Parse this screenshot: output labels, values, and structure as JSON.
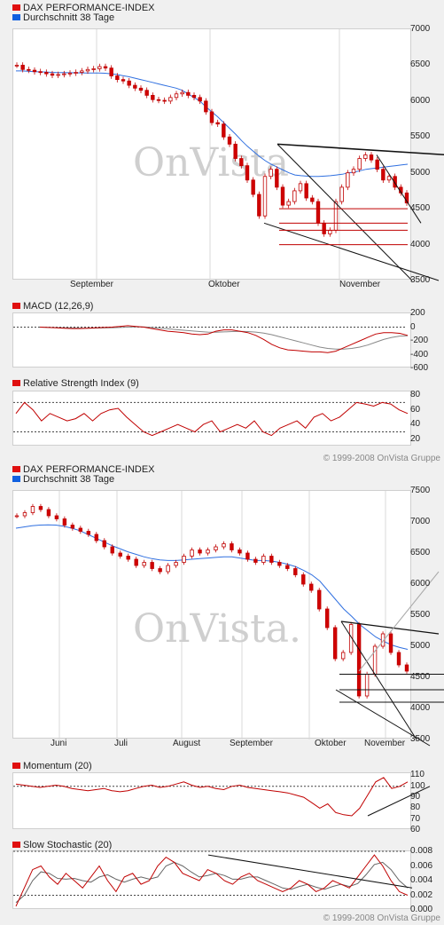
{
  "charts": [
    {
      "type": "line",
      "legend": [
        {
          "name": "DAX PERFORMANCE-INDEX",
          "color": "#e01010"
        },
        {
          "name": "Durchschnitt 38 Tage",
          "color": "#1060e0"
        }
      ],
      "watermark": "OnVista",
      "x_labels": [
        "September",
        "Oktober",
        "November"
      ],
      "y_labels": [
        "7000",
        "6500",
        "6000",
        "5500",
        "5000",
        "4500",
        "4000",
        "3500"
      ],
      "ylim": [
        3500,
        7000
      ],
      "price": [
        6500,
        6440,
        6430,
        6410,
        6400,
        6380,
        6360,
        6370,
        6380,
        6390,
        6400,
        6420,
        6440,
        6450,
        6480,
        6460,
        6350,
        6300,
        6280,
        6220,
        6180,
        6150,
        6080,
        6020,
        6010,
        6000,
        6050,
        6100,
        6120,
        6080,
        6050,
        6000,
        5850,
        5700,
        5680,
        5500,
        5400,
        5200,
        5100,
        4900,
        4700,
        4400,
        4950,
        5050,
        4800,
        4550,
        4600,
        4750,
        4850,
        4650,
        4600,
        4300,
        4150,
        4200,
        4600,
        4800,
        5000,
        5050,
        5200,
        5250,
        5180,
        5050,
        4900,
        4950,
        4800,
        4720,
        4580
      ],
      "sma": [
        6420,
        6420,
        6415,
        6410,
        6408,
        6405,
        6400,
        6398,
        6396,
        6395,
        6394,
        6393,
        6392,
        6392,
        6390,
        6388,
        6380,
        6370,
        6355,
        6340,
        6320,
        6300,
        6280,
        6260,
        6240,
        6220,
        6200,
        6180,
        6150,
        6100,
        6050,
        6000,
        5920,
        5850,
        5780,
        5700,
        5620,
        5540,
        5450,
        5370,
        5300,
        5230,
        5170,
        5120,
        5080,
        5040,
        5000,
        4970,
        4960,
        4955,
        4950,
        4950,
        4955,
        4960,
        4970,
        4980,
        5000,
        5010,
        5030,
        5050,
        5060,
        5070,
        5080,
        5090,
        5100,
        5110,
        5120
      ],
      "annotations_note": "",
      "copyright": "© 1999-2008 OnVista Gruppe"
    },
    {
      "type": "line",
      "legend": [
        {
          "name": "MACD (12,26,9)",
          "color": "#e01010"
        }
      ],
      "y_labels": [
        "200",
        "0",
        "-200",
        "-400",
        "-600"
      ],
      "ylim": [
        -600,
        200
      ],
      "macd": [
        0,
        -5,
        -10,
        -15,
        -20,
        -20,
        -15,
        -10,
        -5,
        0,
        10,
        20,
        10,
        0,
        -20,
        -40,
        -60,
        -70,
        -80,
        -100,
        -110,
        -100,
        -60,
        -40,
        -40,
        -60,
        -80,
        -120,
        -180,
        -250,
        -300,
        -330,
        -340,
        -350,
        -360,
        -360,
        -370,
        -350,
        -300,
        -250,
        -200,
        -150,
        -100,
        -80,
        -80,
        -90,
        -120
      ],
      "signal": [
        0,
        -3,
        -6,
        -9,
        -12,
        -14,
        -15,
        -14,
        -12,
        -10,
        -5,
        0,
        3,
        2,
        -5,
        -15,
        -25,
        -35,
        -45,
        -55,
        -65,
        -72,
        -75,
        -70,
        -65,
        -62,
        -65,
        -72,
        -88,
        -110,
        -140,
        -170,
        -200,
        -230,
        -260,
        -290,
        -310,
        -320,
        -320,
        -310,
        -290,
        -260,
        -220,
        -180,
        -150,
        -130,
        -125
      ]
    },
    {
      "type": "line",
      "legend": [
        {
          "name": "Relative Strength Index (9)",
          "color": "#e01010"
        }
      ],
      "y_labels": [
        "80",
        "60",
        "40",
        "20"
      ],
      "ylim": [
        10,
        85
      ],
      "rsi": [
        55,
        70,
        60,
        45,
        55,
        50,
        45,
        48,
        55,
        45,
        55,
        60,
        62,
        50,
        40,
        30,
        25,
        30,
        35,
        40,
        35,
        30,
        40,
        45,
        30,
        35,
        40,
        35,
        45,
        30,
        25,
        35,
        40,
        45,
        35,
        50,
        55,
        45,
        50,
        60,
        70,
        68,
        65,
        70,
        68,
        60,
        55
      ],
      "copyright": "© 1999-2008 OnVista Gruppe"
    },
    {
      "type": "line",
      "legend": [
        {
          "name": "DAX PERFORMANCE-INDEX",
          "color": "#e01010"
        },
        {
          "name": "Durchschnitt 38 Tage",
          "color": "#1060e0"
        }
      ],
      "watermark": "OnVista.",
      "x_labels": [
        "Juni",
        "Juli",
        "August",
        "September",
        "Oktober",
        "November"
      ],
      "y_labels": [
        "7500",
        "7000",
        "6500",
        "6000",
        "5500",
        "5000",
        "4500",
        "4000",
        "3500"
      ],
      "ylim": [
        3500,
        7500
      ],
      "price": [
        7100,
        7150,
        7250,
        7200,
        7100,
        7050,
        6950,
        6900,
        6850,
        6800,
        6700,
        6600,
        6500,
        6450,
        6400,
        6300,
        6350,
        6250,
        6200,
        6300,
        6350,
        6450,
        6550,
        6500,
        6550,
        6600,
        6650,
        6550,
        6500,
        6400,
        6350,
        6450,
        6350,
        6300,
        6250,
        6150,
        6000,
        5900,
        5600,
        5300,
        4800,
        4900,
        5350,
        4200,
        4550,
        5000,
        5200,
        4900,
        4700,
        4600
      ],
      "sma": [
        6900,
        6920,
        6940,
        6950,
        6955,
        6950,
        6930,
        6900,
        6860,
        6800,
        6740,
        6680,
        6620,
        6570,
        6520,
        6480,
        6440,
        6410,
        6390,
        6380,
        6380,
        6390,
        6400,
        6410,
        6420,
        6430,
        6440,
        6440,
        6420,
        6400,
        6380,
        6380,
        6370,
        6350,
        6320,
        6280,
        6220,
        6150,
        6050,
        5900,
        5750,
        5600,
        5480,
        5350,
        5250,
        5150,
        5080,
        5020,
        4980,
        4950
      ]
    },
    {
      "type": "line",
      "legend": [
        {
          "name": "Momentum (20)",
          "color": "#e01010"
        }
      ],
      "y_labels": [
        "110",
        "100",
        "90",
        "80",
        "70",
        "60"
      ],
      "ylim": [
        60,
        112
      ],
      "momentum": [
        102,
        101,
        100,
        99,
        100,
        101,
        100,
        98,
        97,
        96,
        97,
        98,
        96,
        95,
        96,
        98,
        100,
        101,
        99,
        100,
        102,
        104,
        101,
        99,
        100,
        98,
        97,
        100,
        101,
        99,
        98,
        97,
        96,
        95,
        94,
        92,
        90,
        85,
        80,
        84,
        76,
        74,
        73,
        80,
        92,
        104,
        108,
        98,
        100,
        104
      ]
    },
    {
      "type": "line",
      "legend": [
        {
          "name": "Slow Stochastic (20)",
          "color": "#e01010"
        }
      ],
      "y_labels": [
        "0.008",
        "0.006",
        "0.004",
        "0.002",
        "0.000"
      ],
      "ylim": [
        0,
        0.008
      ],
      "k": [
        0.0005,
        0.003,
        0.0055,
        0.006,
        0.0045,
        0.0035,
        0.005,
        0.004,
        0.003,
        0.0045,
        0.006,
        0.004,
        0.0025,
        0.0045,
        0.005,
        0.0035,
        0.004,
        0.006,
        0.0072,
        0.0065,
        0.005,
        0.0045,
        0.004,
        0.0055,
        0.005,
        0.004,
        0.0035,
        0.0045,
        0.005,
        0.004,
        0.0035,
        0.003,
        0.0025,
        0.003,
        0.004,
        0.0035,
        0.0025,
        0.003,
        0.004,
        0.0035,
        0.003,
        0.0045,
        0.006,
        0.0075,
        0.006,
        0.004,
        0.0025,
        0.002
      ],
      "d": [
        0.001,
        0.002,
        0.004,
        0.0052,
        0.005,
        0.0043,
        0.0042,
        0.0043,
        0.004,
        0.0038,
        0.0045,
        0.0048,
        0.0042,
        0.0038,
        0.0042,
        0.0045,
        0.0042,
        0.0045,
        0.006,
        0.0065,
        0.006,
        0.0052,
        0.0045,
        0.0047,
        0.005,
        0.0047,
        0.0042,
        0.0042,
        0.0045,
        0.0045,
        0.004,
        0.0035,
        0.003,
        0.0028,
        0.0032,
        0.0035,
        0.0031,
        0.0028,
        0.0032,
        0.0035,
        0.0032,
        0.0036,
        0.0048,
        0.0062,
        0.0065,
        0.0055,
        0.004,
        0.003
      ],
      "copyright": "© 1999-2008 OnVista Gruppe"
    }
  ],
  "chart_data": [
    {
      "type": "line",
      "title": "DAX PERFORMANCE-INDEX",
      "series": [
        {
          "name": "DAX PERFORMANCE-INDEX"
        },
        {
          "name": "Durchschnitt 38 Tage"
        }
      ],
      "ylim": [
        3500,
        7000
      ],
      "categories": [
        "September",
        "Oktober",
        "November"
      ]
    },
    {
      "type": "line",
      "title": "MACD (12,26,9)",
      "ylim": [
        -600,
        200
      ]
    },
    {
      "type": "line",
      "title": "Relative Strength Index (9)",
      "ylim": [
        20,
        80
      ]
    },
    {
      "type": "line",
      "title": "DAX PERFORMANCE-INDEX",
      "series": [
        {
          "name": "DAX PERFORMANCE-INDEX"
        },
        {
          "name": "Durchschnitt 38 Tage"
        }
      ],
      "ylim": [
        3500,
        7500
      ],
      "categories": [
        "Juni",
        "Juli",
        "August",
        "September",
        "Oktober",
        "November"
      ]
    },
    {
      "type": "line",
      "title": "Momentum (20)",
      "ylim": [
        60,
        110
      ]
    },
    {
      "type": "line",
      "title": "Slow Stochastic (20)",
      "ylim": [
        0,
        0.008
      ]
    }
  ]
}
